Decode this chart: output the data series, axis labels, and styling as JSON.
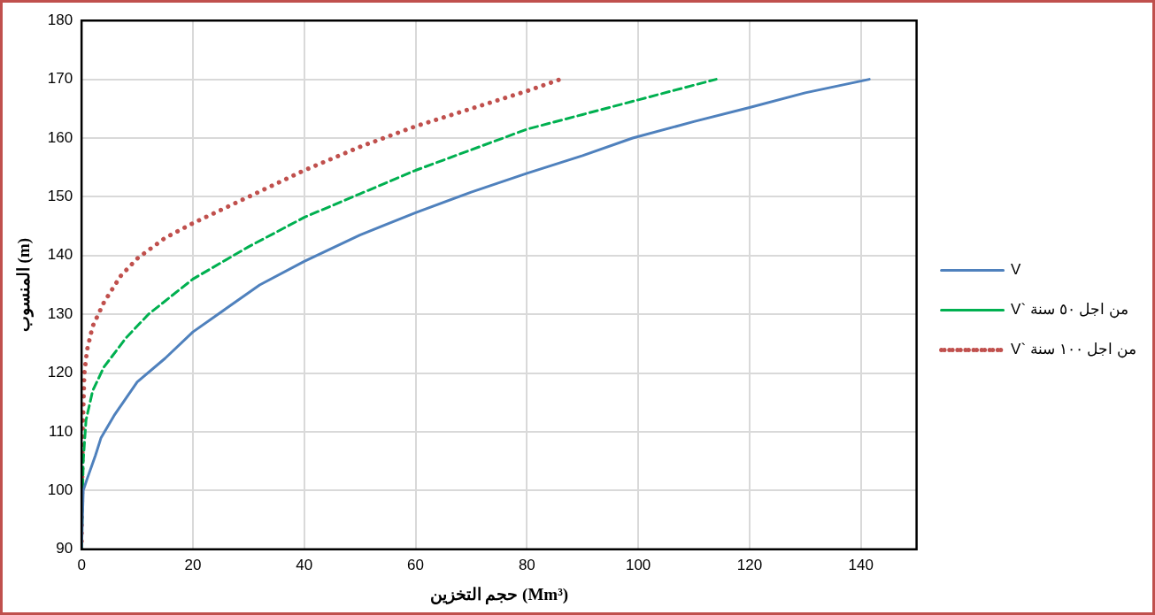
{
  "chart_data": {
    "type": "line",
    "xlabel": "حجم التخزين (Mm³)",
    "ylabel": "المنسوب (m)",
    "xlim": [
      0,
      150
    ],
    "xticks": [
      0,
      20,
      40,
      60,
      80,
      100,
      120,
      140
    ],
    "ylim": [
      90,
      180
    ],
    "yticks": [
      90,
      100,
      110,
      120,
      130,
      140,
      150,
      160,
      170,
      180
    ],
    "grid": true,
    "legend": "right",
    "marker": "none",
    "series": [
      {
        "name": "V",
        "color": "#4f81bd",
        "line_style": "solid",
        "x": [
          0,
          0.3,
          1,
          2.5,
          3.5,
          6,
          10,
          15,
          20,
          26,
          32,
          40,
          50,
          60,
          70,
          80,
          90,
          99,
          110,
          120,
          130,
          141.5
        ],
        "values": [
          90,
          100,
          102,
          106,
          109,
          113,
          118.5,
          122.5,
          127,
          131,
          135,
          139,
          143.5,
          147.3,
          150.8,
          154,
          157,
          160,
          162.8,
          165.2,
          167.7,
          170
        ]
      },
      {
        "name": "V` من اجل ٥٠ سنة",
        "color": "#00b050",
        "line_style": "dashed",
        "x": [
          0,
          0.3,
          0.8,
          2,
          4,
          8,
          12,
          20,
          30,
          40,
          50,
          60,
          70,
          80,
          90,
          100,
          114
        ],
        "values": [
          90,
          105,
          112,
          117,
          121,
          126,
          130,
          136,
          141.5,
          146.5,
          150.5,
          154.5,
          158,
          161.5,
          164,
          166.5,
          170
        ]
      },
      {
        "name": "V` من اجل ١٠٠ سنة",
        "color": "#c0504d",
        "line_style": "dotted",
        "x": [
          0,
          0.2,
          0.5,
          1,
          2,
          4,
          7,
          10,
          15,
          20,
          30,
          40,
          50,
          60,
          70,
          80,
          86
        ],
        "values": [
          90,
          110,
          120,
          124,
          128,
          132,
          136.5,
          139.5,
          143,
          145.5,
          150,
          154.5,
          158.5,
          162,
          165,
          168,
          170
        ]
      }
    ]
  }
}
